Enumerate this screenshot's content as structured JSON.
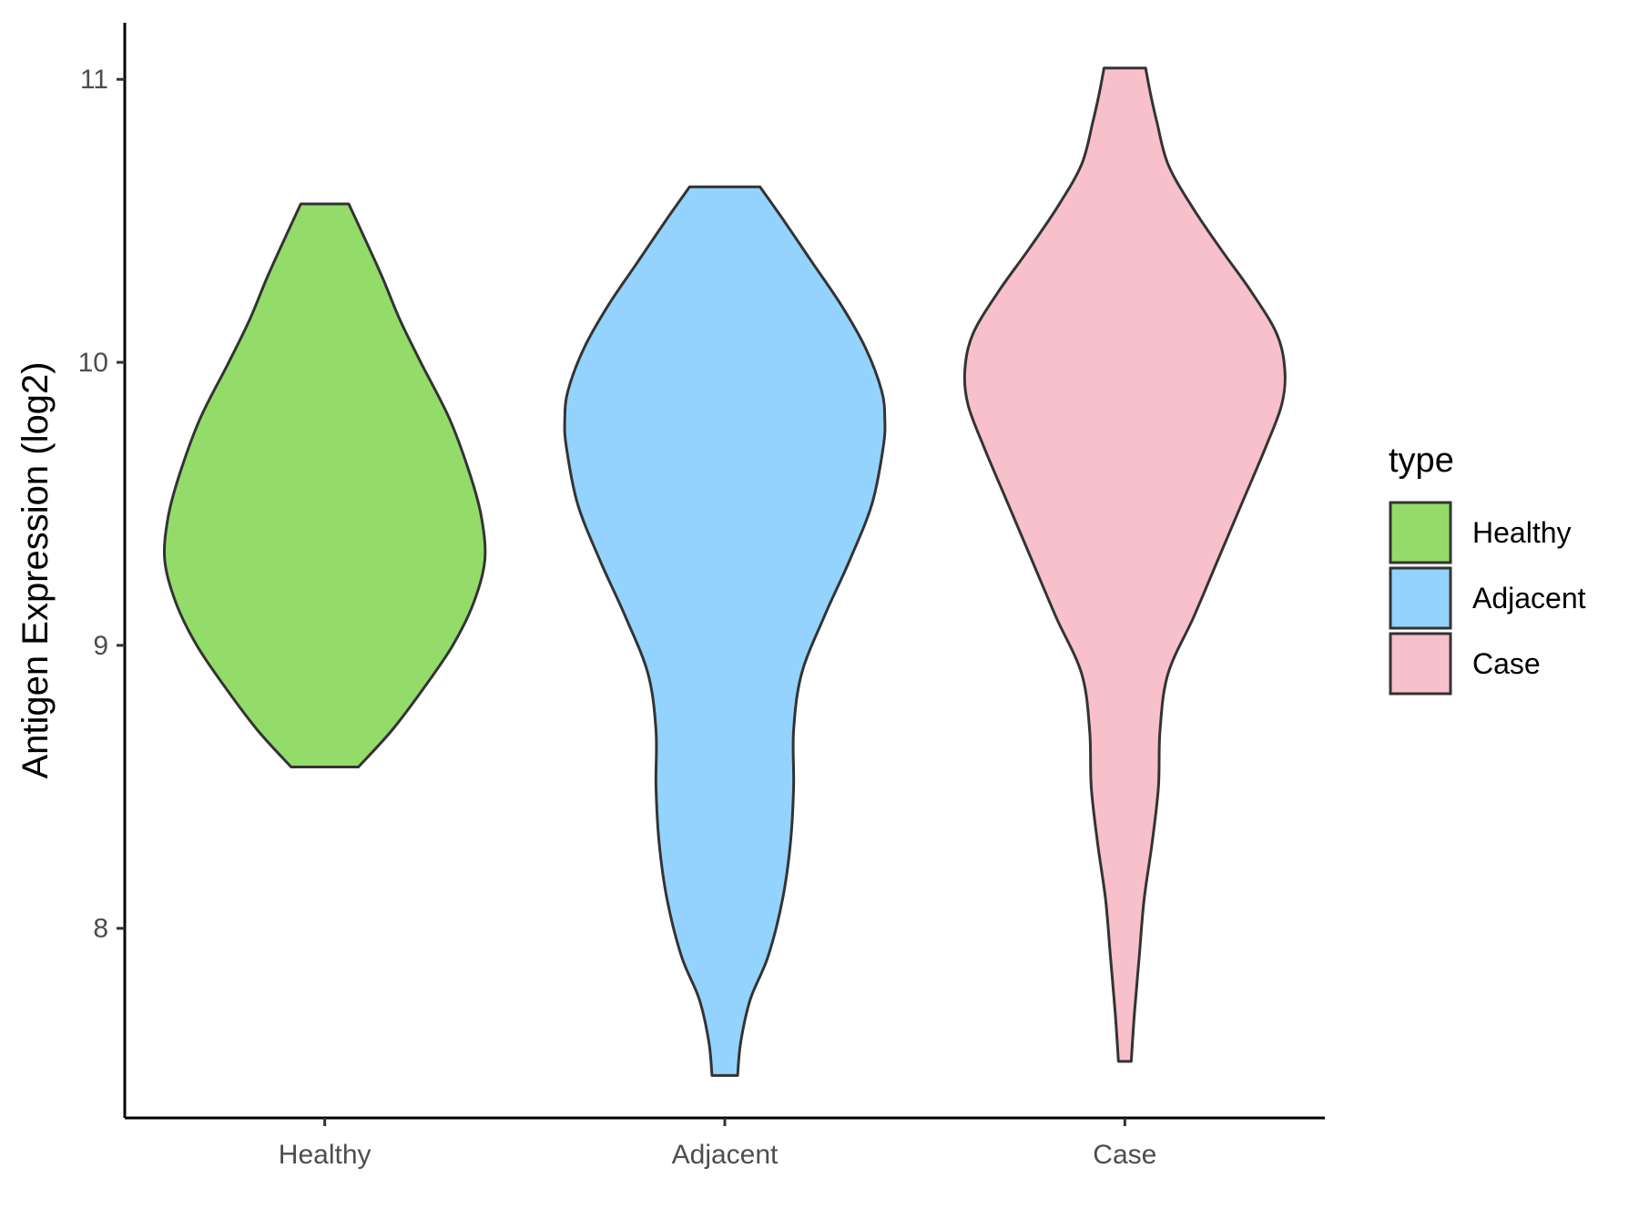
{
  "chart_data": {
    "type": "violin",
    "title": "",
    "xlabel": "",
    "ylabel": "Antigen Expression (log2)",
    "ylim": [
      7.33,
      11.2
    ],
    "yticks": [
      8,
      9,
      10,
      11
    ],
    "categories": [
      "Healthy",
      "Adjacent",
      "Case"
    ],
    "grid": false,
    "legend": {
      "title": "type",
      "position": "right",
      "entries": [
        "Healthy",
        "Adjacent",
        "Case"
      ]
    },
    "colors": {
      "Healthy": "#93dc6a",
      "Adjacent": "#93d3fd",
      "Case": "#f7c0cb",
      "outline": "#333333"
    },
    "series": [
      {
        "name": "Healthy",
        "min": 8.57,
        "max": 10.56,
        "profile": [
          [
            8.57,
            0.21
          ],
          [
            8.7,
            0.42
          ],
          [
            8.85,
            0.62
          ],
          [
            9.0,
            0.8
          ],
          [
            9.15,
            0.93
          ],
          [
            9.3,
            1.0
          ],
          [
            9.45,
            0.98
          ],
          [
            9.6,
            0.91
          ],
          [
            9.8,
            0.78
          ],
          [
            10.0,
            0.6
          ],
          [
            10.15,
            0.47
          ],
          [
            10.3,
            0.36
          ],
          [
            10.45,
            0.24
          ],
          [
            10.56,
            0.15
          ]
        ]
      },
      {
        "name": "Adjacent",
        "min": 7.48,
        "max": 10.62,
        "profile": [
          [
            7.48,
            0.08
          ],
          [
            7.6,
            0.1
          ],
          [
            7.75,
            0.16
          ],
          [
            7.9,
            0.27
          ],
          [
            8.1,
            0.36
          ],
          [
            8.3,
            0.41
          ],
          [
            8.5,
            0.43
          ],
          [
            8.7,
            0.43
          ],
          [
            8.9,
            0.48
          ],
          [
            9.1,
            0.62
          ],
          [
            9.3,
            0.78
          ],
          [
            9.5,
            0.92
          ],
          [
            9.7,
            0.99
          ],
          [
            9.8,
            1.0
          ],
          [
            9.9,
            0.98
          ],
          [
            10.05,
            0.88
          ],
          [
            10.2,
            0.73
          ],
          [
            10.35,
            0.55
          ],
          [
            10.5,
            0.37
          ],
          [
            10.62,
            0.22
          ]
        ]
      },
      {
        "name": "Case",
        "min": 7.53,
        "max": 11.04,
        "profile": [
          [
            7.53,
            0.04
          ],
          [
            7.7,
            0.06
          ],
          [
            7.9,
            0.09
          ],
          [
            8.1,
            0.12
          ],
          [
            8.3,
            0.17
          ],
          [
            8.5,
            0.21
          ],
          [
            8.7,
            0.22
          ],
          [
            8.9,
            0.27
          ],
          [
            9.1,
            0.43
          ],
          [
            9.3,
            0.58
          ],
          [
            9.5,
            0.73
          ],
          [
            9.7,
            0.88
          ],
          [
            9.85,
            0.98
          ],
          [
            9.97,
            1.0
          ],
          [
            10.1,
            0.95
          ],
          [
            10.25,
            0.79
          ],
          [
            10.4,
            0.6
          ],
          [
            10.55,
            0.42
          ],
          [
            10.7,
            0.27
          ],
          [
            10.85,
            0.2
          ],
          [
            10.95,
            0.16
          ],
          [
            11.04,
            0.13
          ]
        ]
      }
    ]
  }
}
